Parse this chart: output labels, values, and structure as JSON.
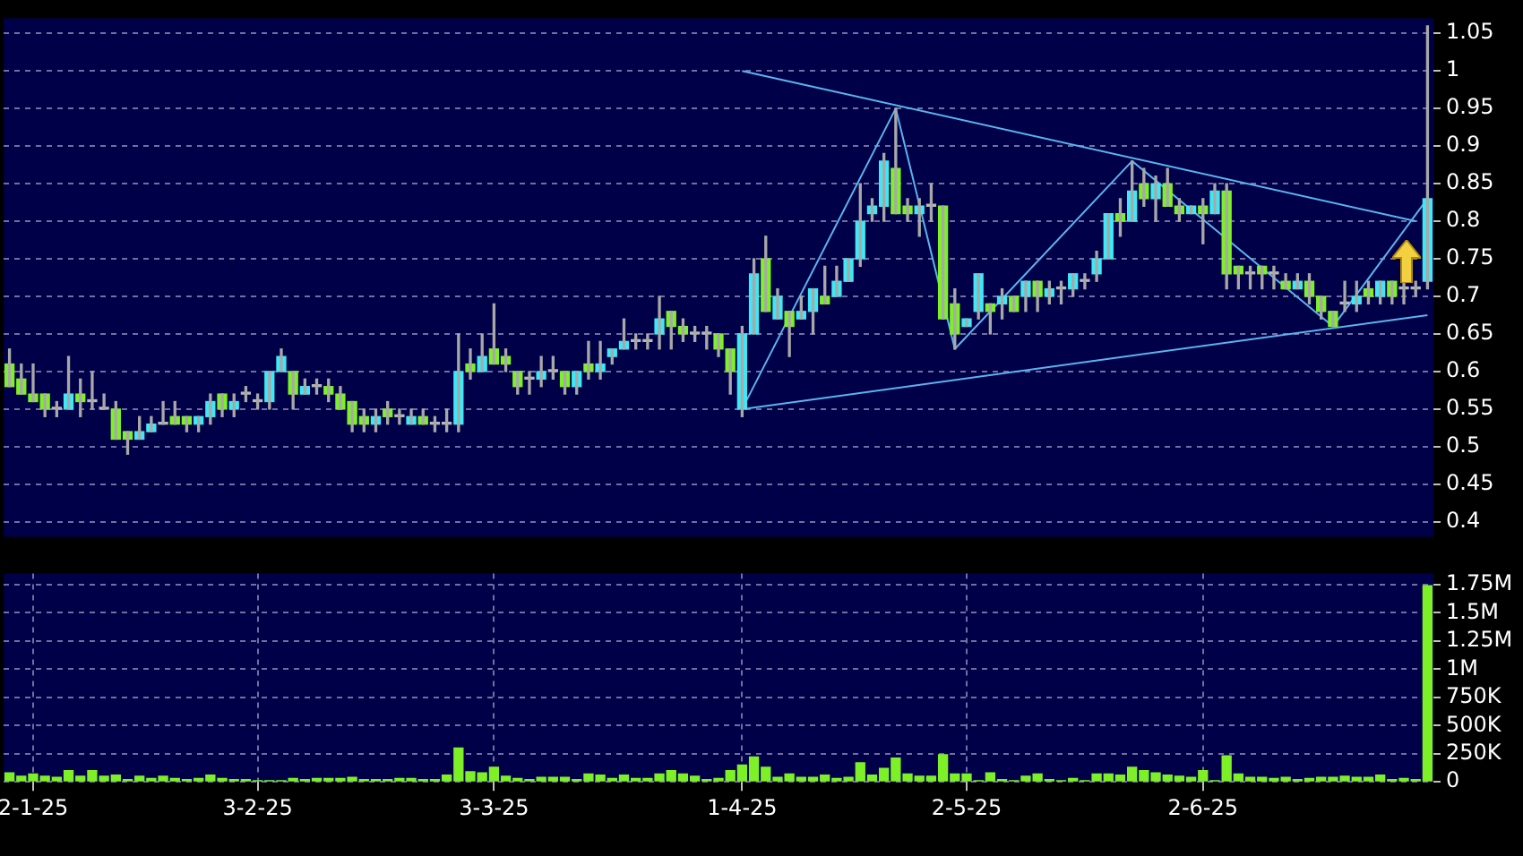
{
  "chart_data": [
    {
      "type": "candlestick",
      "categories": [
        null,
        null,
        null,
        null,
        null,
        null,
        null,
        null,
        null,
        null,
        null,
        null,
        null,
        null,
        null,
        null,
        null,
        null,
        null,
        null,
        null,
        null,
        null,
        null,
        null,
        null,
        null,
        null,
        null,
        null,
        null,
        null,
        null,
        null,
        null,
        null,
        null,
        null,
        null,
        null,
        null,
        null,
        null,
        null,
        null,
        null,
        null,
        null,
        null,
        null,
        null,
        null,
        null,
        null,
        null,
        null,
        null,
        null,
        null,
        null,
        null,
        null,
        null,
        null,
        null,
        null,
        null,
        null,
        null,
        null,
        null,
        null,
        null,
        null,
        null,
        null,
        null,
        null,
        null,
        null,
        null,
        null,
        null,
        null,
        null,
        null,
        null,
        null,
        null,
        null,
        null,
        null,
        null,
        null,
        null,
        null,
        null,
        null,
        null,
        null,
        null,
        null,
        null,
        null,
        null,
        null,
        null,
        null,
        null,
        null,
        null,
        null,
        null,
        null,
        null,
        null,
        null,
        null,
        null,
        null,
        null
      ],
      "ohlc": [
        [
          0.61,
          0.63,
          0.58,
          0.58
        ],
        [
          0.59,
          0.61,
          0.57,
          0.57
        ],
        [
          0.57,
          0.61,
          0.56,
          0.56
        ],
        [
          0.57,
          0.57,
          0.54,
          0.55
        ],
        [
          0.55,
          0.56,
          0.54,
          0.55
        ],
        [
          0.55,
          0.62,
          0.55,
          0.57
        ],
        [
          0.57,
          0.59,
          0.54,
          0.56
        ],
        [
          0.56,
          0.6,
          0.55,
          0.56
        ],
        [
          0.55,
          0.57,
          0.55,
          0.55
        ],
        [
          0.55,
          0.56,
          0.51,
          0.51
        ],
        [
          0.52,
          0.52,
          0.49,
          0.51
        ],
        [
          0.51,
          0.54,
          0.51,
          0.52
        ],
        [
          0.52,
          0.54,
          0.52,
          0.53
        ],
        [
          0.53,
          0.56,
          0.53,
          0.53
        ],
        [
          0.54,
          0.56,
          0.53,
          0.53
        ],
        [
          0.54,
          0.54,
          0.52,
          0.53
        ],
        [
          0.53,
          0.54,
          0.52,
          0.54
        ],
        [
          0.54,
          0.57,
          0.53,
          0.56
        ],
        [
          0.57,
          0.57,
          0.54,
          0.55
        ],
        [
          0.55,
          0.57,
          0.54,
          0.56
        ],
        [
          0.57,
          0.58,
          0.56,
          0.57
        ],
        [
          0.56,
          0.57,
          0.55,
          0.56
        ],
        [
          0.56,
          0.6,
          0.55,
          0.6
        ],
        [
          0.6,
          0.63,
          0.6,
          0.62
        ],
        [
          0.6,
          0.6,
          0.55,
          0.57
        ],
        [
          0.57,
          0.59,
          0.57,
          0.58
        ],
        [
          0.58,
          0.59,
          0.57,
          0.58
        ],
        [
          0.58,
          0.59,
          0.56,
          0.57
        ],
        [
          0.57,
          0.58,
          0.55,
          0.55
        ],
        [
          0.56,
          0.56,
          0.52,
          0.53
        ],
        [
          0.54,
          0.55,
          0.52,
          0.53
        ],
        [
          0.53,
          0.55,
          0.52,
          0.54
        ],
        [
          0.55,
          0.56,
          0.53,
          0.54
        ],
        [
          0.54,
          0.55,
          0.53,
          0.54
        ],
        [
          0.53,
          0.55,
          0.53,
          0.54
        ],
        [
          0.54,
          0.55,
          0.53,
          0.53
        ],
        [
          0.53,
          0.54,
          0.52,
          0.53
        ],
        [
          0.53,
          0.55,
          0.52,
          0.53
        ],
        [
          0.53,
          0.65,
          0.52,
          0.6
        ],
        [
          0.61,
          0.63,
          0.59,
          0.6
        ],
        [
          0.6,
          0.65,
          0.6,
          0.62
        ],
        [
          0.63,
          0.69,
          0.61,
          0.61
        ],
        [
          0.62,
          0.63,
          0.6,
          0.61
        ],
        [
          0.6,
          0.6,
          0.57,
          0.58
        ],
        [
          0.59,
          0.6,
          0.57,
          0.59
        ],
        [
          0.59,
          0.62,
          0.58,
          0.6
        ],
        [
          0.6,
          0.62,
          0.59,
          0.6
        ],
        [
          0.6,
          0.6,
          0.57,
          0.58
        ],
        [
          0.58,
          0.6,
          0.57,
          0.6
        ],
        [
          0.61,
          0.64,
          0.59,
          0.6
        ],
        [
          0.6,
          0.64,
          0.59,
          0.61
        ],
        [
          0.62,
          0.63,
          0.61,
          0.63
        ],
        [
          0.63,
          0.67,
          0.63,
          0.64
        ],
        [
          0.64,
          0.65,
          0.63,
          0.64
        ],
        [
          0.64,
          0.65,
          0.63,
          0.64
        ],
        [
          0.65,
          0.7,
          0.63,
          0.67
        ],
        [
          0.68,
          0.68,
          0.63,
          0.66
        ],
        [
          0.66,
          0.67,
          0.64,
          0.65
        ],
        [
          0.65,
          0.66,
          0.64,
          0.65
        ],
        [
          0.65,
          0.66,
          0.63,
          0.65
        ],
        [
          0.65,
          0.65,
          0.62,
          0.63
        ],
        [
          0.63,
          0.63,
          0.57,
          0.6
        ],
        [
          0.55,
          0.66,
          0.54,
          0.65
        ],
        [
          0.65,
          0.75,
          0.65,
          0.73
        ],
        [
          0.75,
          0.78,
          0.68,
          0.68
        ],
        [
          0.67,
          0.71,
          0.67,
          0.7
        ],
        [
          0.68,
          0.68,
          0.62,
          0.66
        ],
        [
          0.67,
          0.7,
          0.67,
          0.68
        ],
        [
          0.68,
          0.71,
          0.65,
          0.71
        ],
        [
          0.7,
          0.74,
          0.69,
          0.69
        ],
        [
          0.7,
          0.74,
          0.7,
          0.72
        ],
        [
          0.72,
          0.75,
          0.72,
          0.75
        ],
        [
          0.75,
          0.85,
          0.74,
          0.8
        ],
        [
          0.81,
          0.83,
          0.8,
          0.82
        ],
        [
          0.82,
          0.89,
          0.8,
          0.88
        ],
        [
          0.87,
          0.95,
          0.81,
          0.81
        ],
        [
          0.82,
          0.83,
          0.8,
          0.81
        ],
        [
          0.81,
          0.83,
          0.78,
          0.82
        ],
        [
          0.82,
          0.85,
          0.8,
          0.82
        ],
        [
          0.82,
          0.82,
          0.67,
          0.67
        ],
        [
          0.69,
          0.71,
          0.63,
          0.65
        ],
        [
          0.66,
          0.67,
          0.66,
          0.67
        ],
        [
          0.68,
          0.73,
          0.67,
          0.73
        ],
        [
          0.69,
          0.69,
          0.65,
          0.68
        ],
        [
          0.69,
          0.71,
          0.67,
          0.7
        ],
        [
          0.7,
          0.7,
          0.68,
          0.68
        ],
        [
          0.7,
          0.72,
          0.68,
          0.72
        ],
        [
          0.72,
          0.72,
          0.68,
          0.7
        ],
        [
          0.7,
          0.72,
          0.69,
          0.71
        ],
        [
          0.71,
          0.72,
          0.69,
          0.71
        ],
        [
          0.71,
          0.73,
          0.7,
          0.73
        ],
        [
          0.72,
          0.73,
          0.71,
          0.72
        ],
        [
          0.73,
          0.76,
          0.72,
          0.75
        ],
        [
          0.75,
          0.81,
          0.75,
          0.81
        ],
        [
          0.81,
          0.83,
          0.78,
          0.8
        ],
        [
          0.8,
          0.88,
          0.8,
          0.84
        ],
        [
          0.85,
          0.87,
          0.82,
          0.83
        ],
        [
          0.83,
          0.86,
          0.8,
          0.85
        ],
        [
          0.85,
          0.87,
          0.82,
          0.82
        ],
        [
          0.82,
          0.83,
          0.8,
          0.81
        ],
        [
          0.81,
          0.82,
          0.81,
          0.82
        ],
        [
          0.82,
          0.83,
          0.77,
          0.81
        ],
        [
          0.81,
          0.85,
          0.81,
          0.84
        ],
        [
          0.84,
          0.85,
          0.71,
          0.73
        ],
        [
          0.74,
          0.74,
          0.71,
          0.73
        ],
        [
          0.73,
          0.74,
          0.71,
          0.73
        ],
        [
          0.74,
          0.74,
          0.71,
          0.73
        ],
        [
          0.73,
          0.74,
          0.71,
          0.73
        ],
        [
          0.72,
          0.73,
          0.71,
          0.71
        ],
        [
          0.71,
          0.73,
          0.71,
          0.72
        ],
        [
          0.72,
          0.73,
          0.69,
          0.7
        ],
        [
          0.7,
          0.7,
          0.67,
          0.68
        ],
        [
          0.68,
          0.68,
          0.66,
          0.66
        ],
        [
          0.69,
          0.72,
          0.68,
          0.69
        ],
        [
          0.69,
          0.72,
          0.68,
          0.7
        ],
        [
          0.71,
          0.72,
          0.69,
          0.7
        ],
        [
          0.7,
          0.72,
          0.69,
          0.72
        ],
        [
          0.72,
          0.72,
          0.69,
          0.7
        ],
        [
          0.71,
          0.72,
          0.69,
          0.71
        ],
        [
          0.71,
          0.72,
          0.7,
          0.71
        ],
        [
          0.72,
          1.06,
          0.71,
          0.83
        ]
      ],
      "colors": [
        "#7ef028",
        "#7ef028",
        "#7ef028",
        "#7ef028",
        "#b8b8b8",
        "#3ee8f4",
        "#7ef028",
        "#b8b8b8",
        "#b8b8b8",
        "#7ef028",
        "#7ef028",
        "#3ee8f4",
        "#3ee8f4",
        "#b8b8b8",
        "#7ef028",
        "#7ef028",
        "#3ee8f4",
        "#3ee8f4",
        "#7ef028",
        "#3ee8f4",
        "#b8b8b8",
        "#b8b8b8",
        "#3ee8f4",
        "#3ee8f4",
        "#7ef028",
        "#3ee8f4",
        "#b8b8b8",
        "#7ef028",
        "#7ef028",
        "#7ef028",
        "#7ef028",
        "#3ee8f4",
        "#7ef028",
        "#b8b8b8",
        "#3ee8f4",
        "#7ef028",
        "#b8b8b8",
        "#b8b8b8",
        "#3ee8f4",
        "#7ef028",
        "#3ee8f4",
        "#7ef028",
        "#7ef028",
        "#7ef028",
        "#b8b8b8",
        "#3ee8f4",
        "#b8b8b8",
        "#7ef028",
        "#3ee8f4",
        "#7ef028",
        "#3ee8f4",
        "#3ee8f4",
        "#3ee8f4",
        "#b8b8b8",
        "#b8b8b8",
        "#3ee8f4",
        "#7ef028",
        "#7ef028",
        "#b8b8b8",
        "#b8b8b8",
        "#7ef028",
        "#7ef028",
        "#3ee8f4",
        "#3ee8f4",
        "#7ef028",
        "#3ee8f4",
        "#7ef028",
        "#3ee8f4",
        "#3ee8f4",
        "#7ef028",
        "#3ee8f4",
        "#3ee8f4",
        "#3ee8f4",
        "#3ee8f4",
        "#3ee8f4",
        "#7ef028",
        "#7ef028",
        "#3ee8f4",
        "#b8b8b8",
        "#7ef028",
        "#7ef028",
        "#3ee8f4",
        "#3ee8f4",
        "#7ef028",
        "#3ee8f4",
        "#7ef028",
        "#3ee8f4",
        "#7ef028",
        "#3ee8f4",
        "#b8b8b8",
        "#3ee8f4",
        "#b8b8b8",
        "#3ee8f4",
        "#3ee8f4",
        "#7ef028",
        "#3ee8f4",
        "#7ef028",
        "#3ee8f4",
        "#7ef028",
        "#7ef028",
        "#3ee8f4",
        "#7ef028",
        "#3ee8f4",
        "#7ef028",
        "#7ef028",
        "#b8b8b8",
        "#7ef028",
        "#b8b8b8",
        "#7ef028",
        "#3ee8f4",
        "#7ef028",
        "#7ef028",
        "#7ef028",
        "#b8b8b8",
        "#3ee8f4",
        "#7ef028",
        "#3ee8f4",
        "#7ef028",
        "#b8b8b8",
        "#b8b8b8",
        "#3ee8f4"
      ],
      "series": [
        {
          "type": "line",
          "color": "#5ab4ee",
          "values": [
            null,
            null,
            null,
            null,
            null,
            null,
            null,
            null,
            null,
            null,
            null,
            null,
            null,
            null,
            null,
            null,
            null,
            null,
            null,
            null,
            null,
            null,
            null,
            null,
            null,
            null,
            null,
            null,
            null,
            null,
            null,
            null,
            null,
            null,
            null,
            null,
            null,
            null,
            null,
            null,
            null,
            null,
            null,
            null,
            null,
            null,
            null,
            null,
            null,
            null,
            null,
            null,
            null,
            null,
            null,
            null,
            null,
            null,
            null,
            null,
            null,
            null,
            1.0,
            null,
            null,
            null,
            null,
            null,
            null,
            null,
            null,
            null,
            null,
            null,
            null,
            null,
            null,
            null,
            null,
            null,
            null,
            null,
            null,
            null,
            null,
            null,
            null,
            null,
            null,
            null,
            null,
            null,
            null,
            null,
            null,
            null,
            null,
            null,
            null,
            null,
            null,
            null,
            null,
            null,
            null,
            null,
            null,
            null,
            null,
            null,
            null,
            null,
            null,
            null,
            null,
            null,
            null,
            null,
            null,
            0.8,
            null
          ]
        },
        {
          "type": "line",
          "color": "#5ab4ee",
          "values": [
            null,
            null,
            null,
            null,
            null,
            null,
            null,
            null,
            null,
            null,
            null,
            null,
            null,
            null,
            null,
            null,
            null,
            null,
            null,
            null,
            null,
            null,
            null,
            null,
            null,
            null,
            null,
            null,
            null,
            null,
            null,
            null,
            null,
            null,
            null,
            null,
            null,
            null,
            null,
            null,
            null,
            null,
            null,
            null,
            null,
            null,
            null,
            null,
            null,
            null,
            null,
            null,
            null,
            null,
            null,
            null,
            null,
            null,
            null,
            null,
            null,
            null,
            0.55,
            null,
            null,
            null,
            null,
            null,
            null,
            null,
            null,
            null,
            null,
            null,
            null,
            null,
            null,
            null,
            null,
            null,
            null,
            null,
            null,
            null,
            null,
            null,
            null,
            null,
            null,
            null,
            null,
            null,
            null,
            null,
            null,
            null,
            null,
            null,
            null,
            null,
            null,
            null,
            null,
            null,
            null,
            null,
            null,
            null,
            null,
            null,
            null,
            null,
            null,
            null,
            null,
            null,
            null,
            null,
            null,
            null,
            0.675
          ]
        },
        {
          "type": "line",
          "color": "#5ab4ee",
          "values": [
            null,
            null,
            null,
            null,
            null,
            null,
            null,
            null,
            null,
            null,
            null,
            null,
            null,
            null,
            null,
            null,
            null,
            null,
            null,
            null,
            null,
            null,
            null,
            null,
            null,
            null,
            null,
            null,
            null,
            null,
            null,
            null,
            null,
            null,
            null,
            null,
            null,
            null,
            null,
            null,
            null,
            null,
            null,
            null,
            null,
            null,
            null,
            null,
            null,
            null,
            null,
            null,
            null,
            null,
            null,
            null,
            null,
            null,
            null,
            null,
            null,
            null,
            0.55,
            null,
            null,
            null,
            null,
            null,
            null,
            null,
            null,
            null,
            null,
            null,
            null,
            0.95,
            null,
            null,
            null,
            null,
            0.63,
            null,
            null,
            null,
            null,
            null,
            null,
            null,
            null,
            null,
            null,
            null,
            null,
            null,
            null,
            0.88,
            null,
            null,
            null,
            null,
            null,
            null,
            null,
            null,
            null,
            null,
            null,
            null,
            null,
            null,
            null,
            null,
            0.66,
            null,
            null,
            null,
            null,
            null,
            null,
            null,
            0.83
          ]
        }
      ],
      "ylim": [
        0.38,
        1.07
      ],
      "yticks": [
        0.4,
        0.45,
        0.5,
        0.55,
        0.6,
        0.65,
        0.7,
        0.75,
        0.8,
        0.85,
        0.9,
        0.95,
        1,
        1.05
      ],
      "grid": "y",
      "tick_labels": "y"
    },
    {
      "type": "bar",
      "categories": [
        null,
        null,
        "2-1-25",
        null,
        null,
        null,
        null,
        null,
        null,
        null,
        null,
        null,
        null,
        null,
        null,
        null,
        null,
        null,
        null,
        null,
        null,
        "3-2-25",
        null,
        null,
        null,
        null,
        null,
        null,
        null,
        null,
        null,
        null,
        null,
        null,
        null,
        null,
        null,
        null,
        null,
        null,
        null,
        "3-3-25",
        null,
        null,
        null,
        null,
        null,
        null,
        null,
        null,
        null,
        null,
        null,
        null,
        null,
        null,
        null,
        null,
        null,
        null,
        null,
        null,
        "1-4-25",
        null,
        null,
        null,
        null,
        null,
        null,
        null,
        null,
        null,
        null,
        null,
        null,
        null,
        null,
        null,
        null,
        null,
        null,
        "2-5-25",
        null,
        null,
        null,
        null,
        null,
        null,
        null,
        null,
        null,
        null,
        null,
        null,
        null,
        null,
        null,
        null,
        null,
        null,
        null,
        "2-6-25",
        null,
        null,
        null,
        null,
        null,
        null,
        null,
        null,
        null,
        null,
        null,
        null,
        null,
        null,
        null,
        null,
        null,
        null,
        null
      ],
      "values": [
        80000,
        50000,
        70000,
        50000,
        40000,
        100000,
        50000,
        100000,
        50000,
        60000,
        20000,
        50000,
        30000,
        50000,
        30000,
        20000,
        30000,
        60000,
        30000,
        20000,
        20000,
        10000,
        10000,
        10000,
        30000,
        20000,
        30000,
        30000,
        30000,
        40000,
        20000,
        20000,
        20000,
        30000,
        30000,
        20000,
        20000,
        60000,
        300000,
        90000,
        80000,
        130000,
        50000,
        30000,
        20000,
        40000,
        40000,
        40000,
        20000,
        70000,
        60000,
        30000,
        60000,
        30000,
        30000,
        70000,
        100000,
        70000,
        50000,
        20000,
        30000,
        100000,
        150000,
        220000,
        130000,
        40000,
        70000,
        40000,
        40000,
        60000,
        30000,
        40000,
        170000,
        60000,
        120000,
        210000,
        70000,
        50000,
        50000,
        240000,
        70000,
        70000,
        10000,
        80000,
        20000,
        10000,
        50000,
        70000,
        20000,
        10000,
        30000,
        10000,
        70000,
        70000,
        60000,
        130000,
        100000,
        80000,
        60000,
        50000,
        40000,
        100000,
        10000,
        230000,
        70000,
        40000,
        40000,
        30000,
        40000,
        20000,
        30000,
        40000,
        40000,
        50000,
        40000,
        40000,
        60000,
        20000,
        30000,
        20000,
        1740000
      ],
      "color": "#7ef028",
      "ylim": [
        0,
        1850000
      ],
      "yticks": [
        0,
        {
          "value": 250000,
          "label": "250K"
        },
        {
          "value": 500000,
          "label": "500K"
        },
        {
          "value": 750000,
          "label": "750K"
        },
        {
          "value": 1000000,
          "label": "1M"
        },
        {
          "value": 1250000,
          "label": "1.25M"
        },
        {
          "value": 1500000,
          "label": "1.5M"
        },
        {
          "value": 1750000,
          "label": "1.75M"
        }
      ],
      "grid": true
    }
  ]
}
